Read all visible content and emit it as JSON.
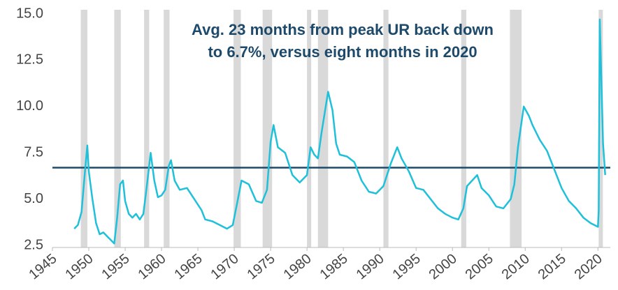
{
  "chart_data": {
    "type": "line",
    "annotation": [
      "Avg. 23 months from peak UR back down",
      "to 6.7%, versus eight months in 2020"
    ],
    "x": [
      1948.0,
      1948.5,
      1949.0,
      1949.5,
      1949.8,
      1950.0,
      1950.5,
      1951.0,
      1951.5,
      1952.0,
      1952.5,
      1953.0,
      1953.5,
      1953.9,
      1954.3,
      1954.7,
      1955.0,
      1955.5,
      1956.0,
      1956.5,
      1957.0,
      1957.5,
      1958.0,
      1958.5,
      1959.0,
      1959.5,
      1960.0,
      1960.5,
      1961.0,
      1961.3,
      1961.8,
      1962.5,
      1963.5,
      1964.5,
      1965.5,
      1966.0,
      1967.0,
      1968.0,
      1969.0,
      1969.8,
      1970.5,
      1971.0,
      1972.0,
      1973.0,
      1973.8,
      1974.5,
      1975.0,
      1975.4,
      1976.0,
      1977.0,
      1978.0,
      1979.0,
      1980.0,
      1980.5,
      1981.0,
      1981.5,
      1982.0,
      1982.9,
      1983.5,
      1984.0,
      1984.5,
      1985.5,
      1986.5,
      1987.5,
      1988.5,
      1989.5,
      1990.5,
      1991.5,
      1992.4,
      1993.0,
      1994.0,
      1995.0,
      1996.0,
      1997.0,
      1998.0,
      1999.0,
      2000.0,
      2000.8,
      2001.5,
      2002.0,
      2003.4,
      2004.0,
      2005.0,
      2006.0,
      2007.0,
      2008.0,
      2008.5,
      2009.0,
      2009.8,
      2010.5,
      2011.0,
      2012.0,
      2013.0,
      2014.0,
      2015.0,
      2016.0,
      2017.0,
      2018.0,
      2019.0,
      2020.0,
      2020.1,
      2020.25,
      2020.5,
      2020.7,
      2021.0
    ],
    "series": [
      {
        "color": "#1ec0da",
        "values": [
          3.4,
          3.6,
          4.3,
          6.6,
          7.9,
          6.5,
          5.0,
          3.7,
          3.1,
          3.2,
          3.0,
          2.8,
          2.6,
          4.0,
          5.8,
          6.0,
          4.9,
          4.2,
          4.0,
          4.2,
          3.9,
          4.2,
          5.8,
          7.5,
          6.0,
          5.1,
          5.2,
          5.5,
          6.8,
          7.1,
          6.0,
          5.5,
          5.6,
          5.0,
          4.4,
          3.9,
          3.8,
          3.6,
          3.4,
          3.6,
          5.0,
          6.0,
          5.8,
          4.9,
          4.8,
          5.5,
          8.1,
          9.0,
          7.8,
          7.5,
          6.3,
          5.9,
          6.3,
          7.8,
          7.4,
          7.2,
          8.6,
          10.8,
          9.8,
          8.0,
          7.4,
          7.3,
          7.0,
          6.0,
          5.4,
          5.3,
          5.7,
          6.9,
          7.8,
          7.2,
          6.5,
          5.6,
          5.5,
          5.0,
          4.5,
          4.2,
          4.0,
          3.9,
          4.5,
          5.7,
          6.3,
          5.6,
          5.2,
          4.6,
          4.5,
          5.0,
          5.8,
          7.8,
          10.0,
          9.5,
          9.0,
          8.2,
          7.6,
          6.6,
          5.6,
          4.9,
          4.5,
          4.0,
          3.7,
          3.5,
          4.4,
          14.7,
          11.0,
          8.0,
          6.3
        ]
      }
    ],
    "recessions": [
      [
        1948.9,
        1949.8
      ],
      [
        1953.5,
        1954.4
      ],
      [
        1957.6,
        1958.3
      ],
      [
        1960.3,
        1961.1
      ],
      [
        1969.9,
        1970.9
      ],
      [
        1973.9,
        1975.2
      ],
      [
        1980.0,
        1980.5
      ],
      [
        1981.5,
        1982.9
      ],
      [
        1990.5,
        1991.2
      ],
      [
        2001.2,
        2001.9
      ],
      [
        2007.9,
        2009.5
      ],
      [
        2020.1,
        2020.3
      ]
    ],
    "recession_color": "#d9d9d9",
    "reference_line": {
      "value": 6.7,
      "color": "#1d4a6b"
    },
    "xlim": [
      1945,
      2021.7
    ],
    "xticks": [
      1945,
      1950,
      1955,
      1960,
      1965,
      1970,
      1975,
      1980,
      1985,
      1990,
      1995,
      2000,
      2005,
      2010,
      2015,
      2020
    ],
    "ylim": [
      2.5,
      15
    ],
    "yticks": [
      2.5,
      {
        "value": 5,
        "label": "5.0"
      },
      7.5,
      {
        "value": 10,
        "label": "10.0"
      },
      12.5,
      {
        "value": 15,
        "label": "15.0"
      }
    ]
  }
}
